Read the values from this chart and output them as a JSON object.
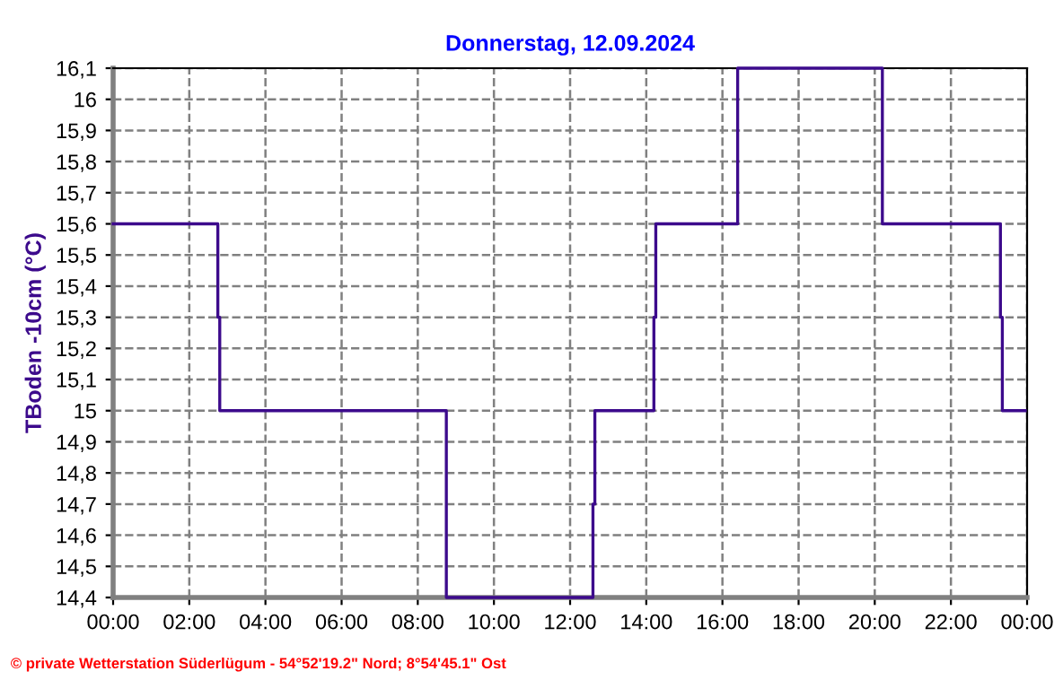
{
  "chart_data": {
    "type": "step",
    "title": "Donnerstag, 12.09.2024",
    "ylabel": "TBoden -10cm (°C)",
    "annotations": [
      "© private Wetterstation Süderlügum - 54°52'19.2\" Nord; 8°54'45.1\" Ost"
    ],
    "x": [
      0,
      2.75,
      2.8,
      8.75,
      12.6,
      12.65,
      14.2,
      14.25,
      16.4,
      20.2,
      23.3,
      23.35,
      23.95
    ],
    "series": [
      {
        "color": "#3c0a8c",
        "values": [
          15.6,
          15.3,
          15.0,
          14.4,
          14.7,
          15.0,
          15.3,
          15.6,
          16.1,
          15.6,
          15.3,
          15.0,
          15.0
        ]
      }
    ],
    "xlim": [
      0,
      24
    ],
    "xticks": [
      {
        "value": 0,
        "label": "00:00"
      },
      {
        "value": 2,
        "label": "02:00"
      },
      {
        "value": 4,
        "label": "04:00"
      },
      {
        "value": 6,
        "label": "06:00"
      },
      {
        "value": 8,
        "label": "08:00"
      },
      {
        "value": 10,
        "label": "10:00"
      },
      {
        "value": 12,
        "label": "12:00"
      },
      {
        "value": 14,
        "label": "14:00"
      },
      {
        "value": 16,
        "label": "16:00"
      },
      {
        "value": 18,
        "label": "18:00"
      },
      {
        "value": 20,
        "label": "20:00"
      },
      {
        "value": 22,
        "label": "22:00"
      },
      {
        "value": 24,
        "label": "00:00"
      }
    ],
    "ylim": [
      14.4,
      16.1
    ],
    "yticks": [
      {
        "value": 14.4,
        "label": "14,4"
      },
      {
        "value": 14.5,
        "label": "14,5"
      },
      {
        "value": 14.6,
        "label": "14,6"
      },
      {
        "value": 14.7,
        "label": "14,7"
      },
      {
        "value": 14.8,
        "label": "14,8"
      },
      {
        "value": 14.9,
        "label": "14,9"
      },
      {
        "value": 15,
        "label": "15"
      },
      {
        "value": 15.1,
        "label": "15,1"
      },
      {
        "value": 15.2,
        "label": "15,2"
      },
      {
        "value": 15.3,
        "label": "15,3"
      },
      {
        "value": 15.4,
        "label": "15,4"
      },
      {
        "value": 15.5,
        "label": "15,5"
      },
      {
        "value": 15.6,
        "label": "15,6"
      },
      {
        "value": 15.7,
        "label": "15,7"
      },
      {
        "value": 15.8,
        "label": "15,8"
      },
      {
        "value": 15.9,
        "label": "15,9"
      },
      {
        "value": 16,
        "label": "16"
      },
      {
        "value": 16.1,
        "label": "16,1"
      }
    ],
    "grid": true,
    "legend": false,
    "line_style": "solid"
  }
}
